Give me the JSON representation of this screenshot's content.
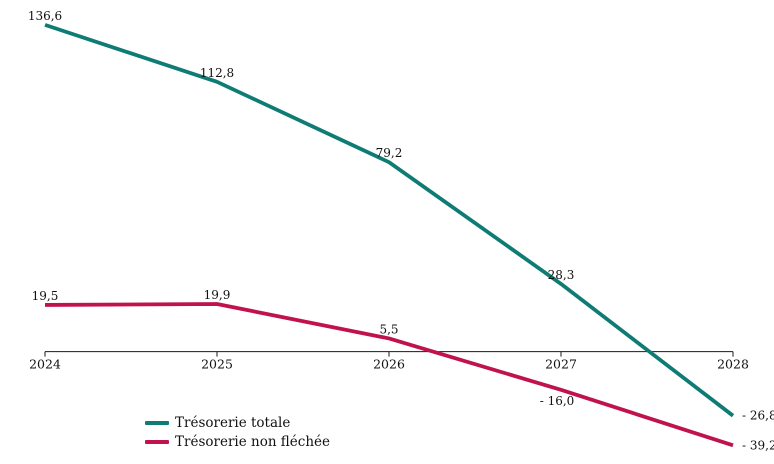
{
  "page": {
    "background": "#ffffff",
    "axis_color": "#1a1a1a",
    "text_color": "#111111"
  },
  "chart_data": {
    "type": "line",
    "categories": [
      "2024",
      "2025",
      "2026",
      "2027",
      "2028"
    ],
    "series": [
      {
        "name": "Trésorerie totale",
        "color": "#0E7C74",
        "values": [
          136.6,
          112.8,
          79.2,
          28.3,
          -26.8
        ],
        "labels": [
          "136,6",
          "112,8",
          "79,2",
          "28,3",
          "- 26,8"
        ]
      },
      {
        "name": "Trésorerie non fléchée",
        "color": "#C0134B",
        "values": [
          19.5,
          19.9,
          5.5,
          -16.0,
          -39.2
        ],
        "labels": [
          "19,5",
          "19,9",
          "5,5",
          "- 16,0",
          "- 39,2"
        ]
      }
    ],
    "title": "",
    "xlabel": "",
    "ylabel": "",
    "ylim": [
      -47,
      147
    ],
    "grid": false,
    "legend_position": "bottom-left",
    "x_axis_at_zero": true
  }
}
